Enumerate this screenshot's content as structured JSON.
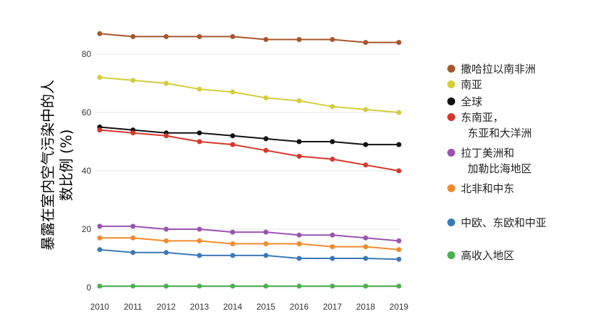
{
  "chart_data": {
    "type": "line",
    "title": "",
    "xlabel": "",
    "ylabel_lines": [
      "暴露在室内空气污染中的人",
      "数比例 (%)"
    ],
    "x": [
      2010,
      2011,
      2012,
      2013,
      2014,
      2015,
      2016,
      2017,
      2018,
      2019
    ],
    "ylim": [
      0,
      88
    ],
    "yticks": [
      0,
      20,
      40,
      60,
      80
    ],
    "grid": "horizontal",
    "legend_position": "right",
    "series": [
      {
        "name": "撒哈拉以南非洲",
        "color": "#a8542c",
        "values": [
          87,
          86,
          86,
          86,
          86,
          85,
          85,
          85,
          84,
          84
        ]
      },
      {
        "name": "南亚",
        "color": "#d4cd3a",
        "values": [
          72,
          71,
          70,
          68,
          67,
          65,
          64,
          62,
          61,
          60
        ]
      },
      {
        "name": "全球",
        "color": "#111111",
        "values": [
          55,
          54,
          53,
          53,
          52,
          51,
          50,
          50,
          49,
          49
        ]
      },
      {
        "name": "东南亚，\n  东亚和大洋洲",
        "color": "#d9362b",
        "values": [
          54,
          53,
          52,
          50,
          49,
          47,
          45,
          44,
          42,
          40
        ]
      },
      {
        "name": "拉丁美洲和\n  加勒比海地区",
        "color": "#9b52b0",
        "values": [
          21,
          21,
          20,
          20,
          19,
          19,
          18,
          18,
          17,
          16
        ]
      },
      {
        "name": "北非和中东",
        "color": "#f28a2d",
        "values": [
          17,
          17,
          16,
          16,
          15,
          15,
          15,
          14,
          14,
          13
        ]
      },
      {
        "name": "中欧、东欧和中亚",
        "color": "#3c78b8",
        "values": [
          13,
          12,
          12,
          11,
          11,
          11,
          10,
          10,
          10,
          9.7
        ]
      },
      {
        "name": "高收入地区",
        "color": "#4caf50",
        "values": [
          0.5,
          0.5,
          0.5,
          0.5,
          0.5,
          0.5,
          0.5,
          0.5,
          0.5,
          0.5
        ]
      }
    ]
  }
}
